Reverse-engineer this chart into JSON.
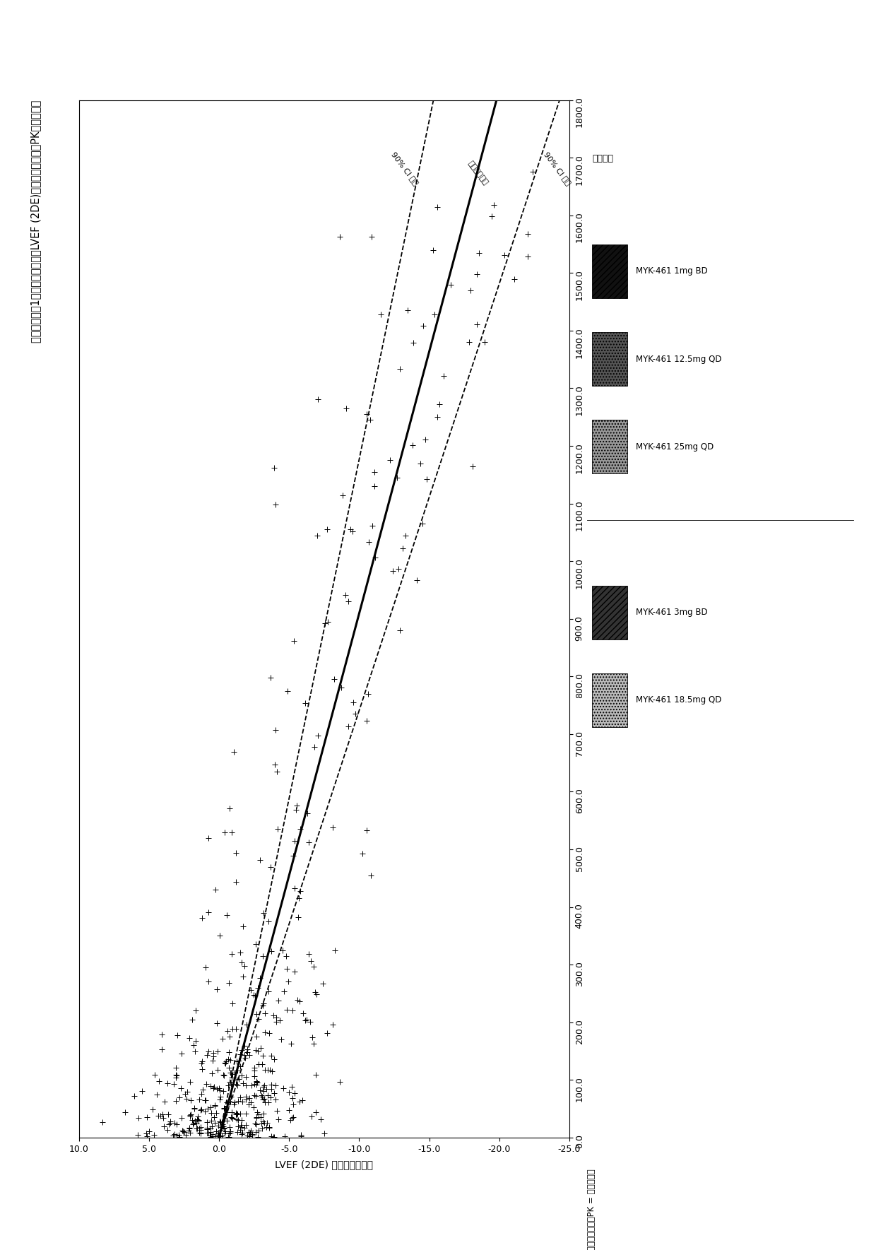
{
  "title": "相对于化合物1的血浆浓度，静息LVEF (2DE)的自基线的变化（PK分析群体）",
  "bottom_note": "LVEF = 左心室射血分数，PK = 药代动力学",
  "conc_ticks": [
    0.0,
    100.0,
    200.0,
    300.0,
    400.0,
    500.0,
    600.0,
    700.0,
    800.0,
    900.0,
    1000.0,
    1100.0,
    1200.0,
    1300.0,
    1400.0,
    1500.0,
    1600.0,
    1700.0,
    1800.0
  ],
  "lvef_ticks": [
    10.0,
    5.0,
    0.0,
    -5.0,
    -10.0,
    -15.0,
    -20.0,
    -25.0
  ],
  "conc_lim": [
    0.0,
    1800.0
  ],
  "lvef_lim": [
    10.0,
    -25.0
  ],
  "slope_mean": -0.011,
  "slope_upper": -0.0085,
  "slope_lower": -0.0135,
  "line_mean_label": "预测的平均值",
  "line_upper_label": "90% CI 上限",
  "line_lower_label": "90% CI 下线",
  "legend_title": "治疗组：",
  "legend_entries": [
    {
      "label": "MYK-461 1mg BD",
      "fc": "#111111",
      "hatch": "////"
    },
    {
      "label": "MYK-461 12.5mg QD",
      "fc": "#555555",
      "hatch": "...."
    },
    {
      "label": "MYK-461 25mg QD",
      "fc": "#999999",
      "hatch": "...."
    },
    {
      "label": "MYK-461 3mg BD",
      "fc": "#333333",
      "hatch": "////"
    },
    {
      "label": "MYK-461 18.5mg QD",
      "fc": "#bbbbbb",
      "hatch": "...."
    }
  ],
  "background_color": "#ffffff"
}
